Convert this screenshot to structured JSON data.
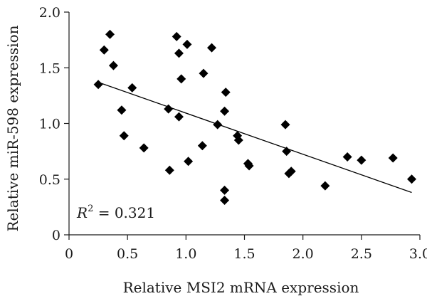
{
  "chart_data": {
    "type": "scatter",
    "xlabel": "Relative MSI2 mRNA expression",
    "ylabel": "Relative miR-598 expression",
    "xlim": [
      0,
      3.0
    ],
    "ylim": [
      0,
      2.0
    ],
    "xticks": [
      "0",
      "0.5",
      "1.0",
      "1.5",
      "2.0",
      "2.5",
      "3.0"
    ],
    "yticks": [
      "0",
      "0.5",
      "1.0",
      "1.5",
      "2.0"
    ],
    "xtick_values": [
      0,
      0.5,
      1.0,
      1.5,
      2.0,
      2.5,
      3.0
    ],
    "ytick_values": [
      0,
      0.5,
      1.0,
      1.5,
      2.0
    ],
    "grid": false,
    "marker": "diamond",
    "annotation": {
      "r_symbol": "R",
      "r_exponent": "2",
      "r_value_text": " = 0.321"
    },
    "trendline": {
      "x": [
        0.25,
        2.93
      ],
      "y": [
        1.37,
        0.38
      ]
    },
    "points": [
      {
        "x": 0.25,
        "y": 1.35
      },
      {
        "x": 0.3,
        "y": 1.66
      },
      {
        "x": 0.35,
        "y": 1.8
      },
      {
        "x": 0.38,
        "y": 1.52
      },
      {
        "x": 0.45,
        "y": 1.12
      },
      {
        "x": 0.47,
        "y": 0.89
      },
      {
        "x": 0.54,
        "y": 1.32
      },
      {
        "x": 0.64,
        "y": 0.78
      },
      {
        "x": 0.85,
        "y": 1.13
      },
      {
        "x": 0.86,
        "y": 0.58
      },
      {
        "x": 0.92,
        "y": 1.78
      },
      {
        "x": 0.94,
        "y": 1.63
      },
      {
        "x": 0.94,
        "y": 1.06
      },
      {
        "x": 0.96,
        "y": 1.4
      },
      {
        "x": 1.01,
        "y": 1.71
      },
      {
        "x": 1.02,
        "y": 0.66
      },
      {
        "x": 1.14,
        "y": 0.8
      },
      {
        "x": 1.15,
        "y": 1.45
      },
      {
        "x": 1.22,
        "y": 1.68
      },
      {
        "x": 1.27,
        "y": 0.99
      },
      {
        "x": 1.33,
        "y": 1.11
      },
      {
        "x": 1.34,
        "y": 1.28
      },
      {
        "x": 1.33,
        "y": 0.4
      },
      {
        "x": 1.33,
        "y": 0.31
      },
      {
        "x": 1.44,
        "y": 0.89
      },
      {
        "x": 1.45,
        "y": 0.85
      },
      {
        "x": 1.53,
        "y": 0.64
      },
      {
        "x": 1.54,
        "y": 0.62
      },
      {
        "x": 1.85,
        "y": 0.99
      },
      {
        "x": 1.86,
        "y": 0.75
      },
      {
        "x": 1.88,
        "y": 0.55
      },
      {
        "x": 1.9,
        "y": 0.57
      },
      {
        "x": 2.19,
        "y": 0.44
      },
      {
        "x": 2.38,
        "y": 0.7
      },
      {
        "x": 2.5,
        "y": 0.67
      },
      {
        "x": 2.77,
        "y": 0.69
      },
      {
        "x": 2.93,
        "y": 0.5
      }
    ]
  }
}
